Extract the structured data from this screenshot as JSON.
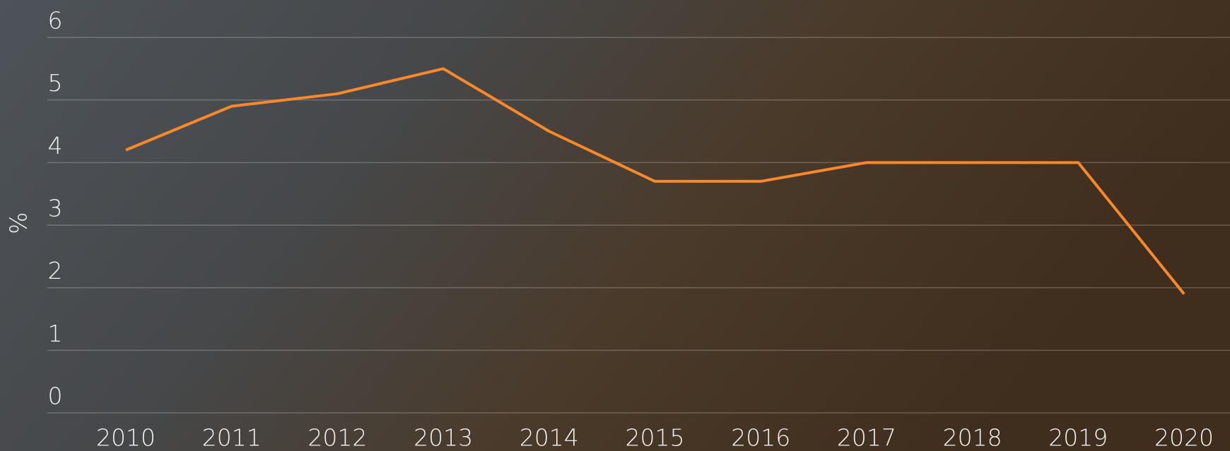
{
  "chart_data": {
    "type": "line",
    "y_label": "%",
    "categories": [
      "2010",
      "2011",
      "2012",
      "2013",
      "2014",
      "2015",
      "2016",
      "2017",
      "2018",
      "2019",
      "2020"
    ],
    "series": [
      {
        "color": "#f7892b",
        "values": [
          4.2,
          4.9,
          5.1,
          5.5,
          4.5,
          3.7,
          3.7,
          4.0,
          4.0,
          4.0,
          1.9
        ]
      }
    ],
    "ylim": [
      0,
      6
    ],
    "yticks": [
      0,
      1,
      2,
      3,
      4,
      5,
      6
    ],
    "grid": true
  }
}
